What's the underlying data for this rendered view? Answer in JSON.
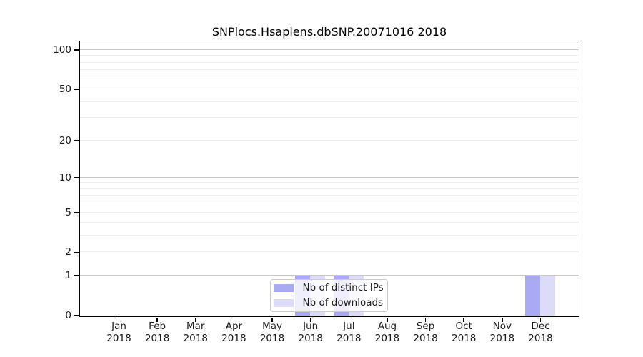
{
  "chart_data": {
    "type": "bar",
    "title": "SNPlocs.Hsapiens.dbSNP.20071016 2018",
    "categories": [
      {
        "month": "Jan",
        "year": "2018"
      },
      {
        "month": "Feb",
        "year": "2018"
      },
      {
        "month": "Mar",
        "year": "2018"
      },
      {
        "month": "Apr",
        "year": "2018"
      },
      {
        "month": "May",
        "year": "2018"
      },
      {
        "month": "Jun",
        "year": "2018"
      },
      {
        "month": "Jul",
        "year": "2018"
      },
      {
        "month": "Aug",
        "year": "2018"
      },
      {
        "month": "Sep",
        "year": "2018"
      },
      {
        "month": "Oct",
        "year": "2018"
      },
      {
        "month": "Nov",
        "year": "2018"
      },
      {
        "month": "Dec",
        "year": "2018"
      }
    ],
    "series": [
      {
        "name": "Nb of distinct IPs",
        "color": "#a9a9f4",
        "values": [
          0,
          0,
          0,
          0,
          0,
          1,
          1,
          0,
          0,
          0,
          0,
          1
        ]
      },
      {
        "name": "Nb of downloads",
        "color": "#dcdcf8",
        "values": [
          0,
          0,
          0,
          0,
          0,
          1,
          1,
          0,
          0,
          0,
          0,
          1
        ]
      }
    ],
    "y_axis": {
      "scale": "log1p",
      "ticks": [
        0,
        1,
        2,
        5,
        10,
        20,
        50,
        100
      ],
      "major_gridlines": [
        1,
        10,
        100
      ],
      "minor_gridlines": [
        2,
        3,
        4,
        5,
        6,
        7,
        8,
        9,
        20,
        30,
        40,
        50,
        60,
        70,
        80,
        90
      ],
      "range": [
        0,
        100
      ]
    },
    "legend": {
      "position": "bottom-center"
    },
    "colors": {
      "axis": "#000000",
      "text": "#1a1a1a",
      "grid_minor": "#efefef",
      "grid_major": "#c8c8c8",
      "legend_border": "#cccccc",
      "background": "#ffffff"
    }
  }
}
